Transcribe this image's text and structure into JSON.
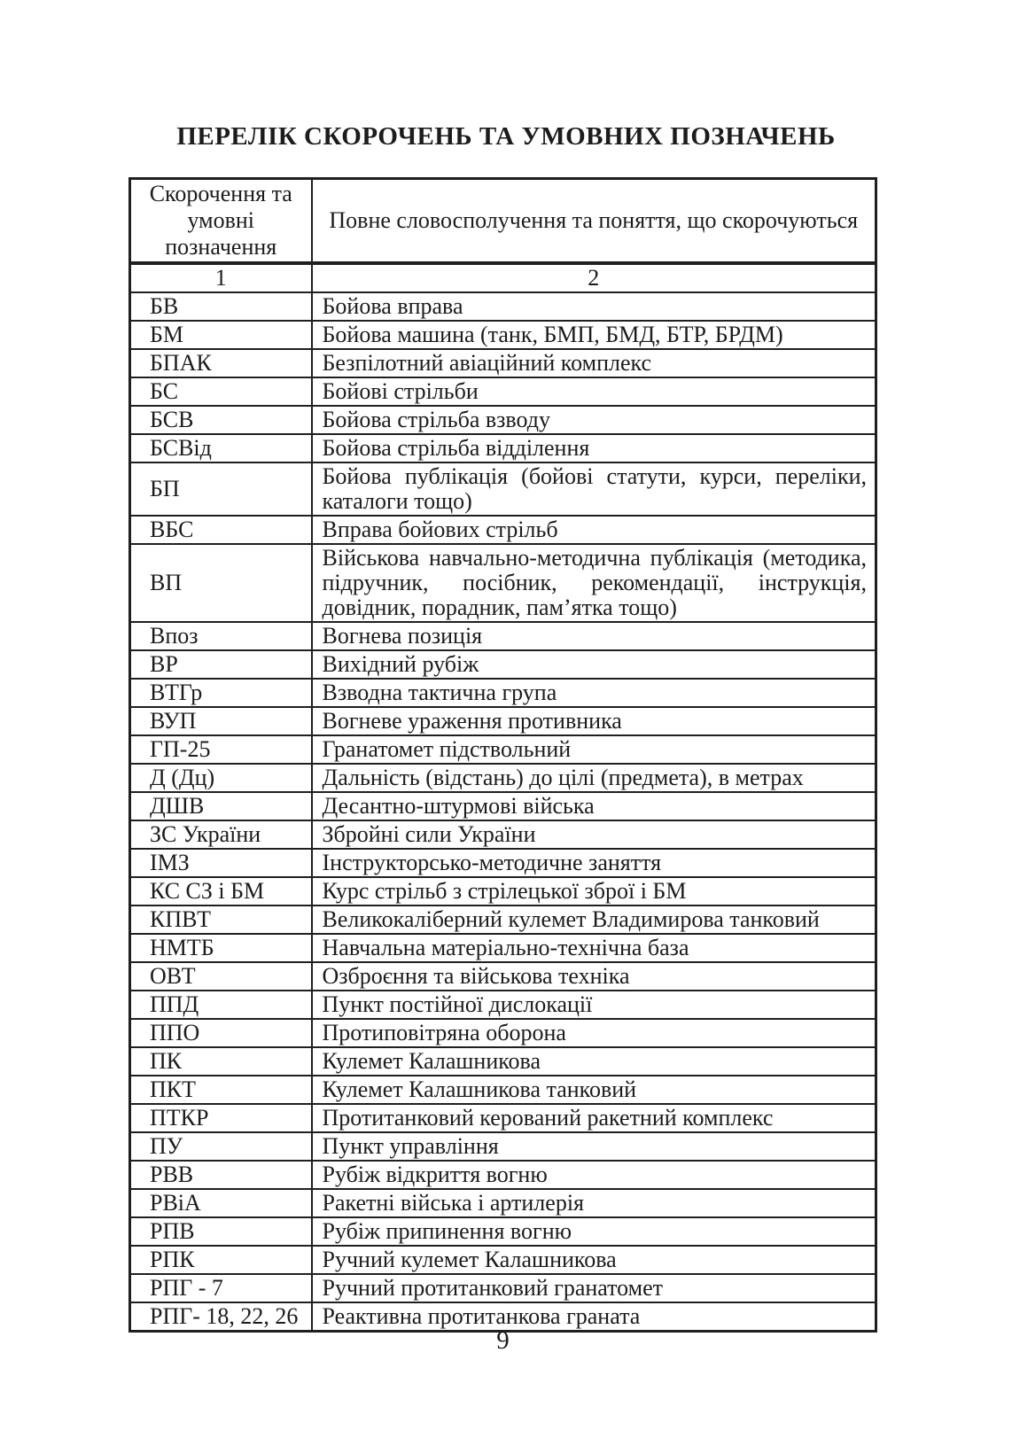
{
  "page": {
    "title": "ПЕРЕЛІК СКОРОЧЕНЬ ТА УМОВНИХ ПОЗНАЧЕНЬ",
    "page_number": "9"
  },
  "table": {
    "header": {
      "abbr_column": "Скорочення та умовні позначення",
      "full_column": "Повне словосполучення та поняття, що скорочуються"
    },
    "numbering": [
      "1",
      "2"
    ],
    "rows": [
      {
        "abbr": "БВ",
        "full": "Бойова вправа"
      },
      {
        "abbr": "БМ",
        "full": "Бойова машина (танк, БМП, БМД, БТР, БРДМ)"
      },
      {
        "abbr": "БПАК",
        "full": "Безпілотний авіаційний комплекс"
      },
      {
        "abbr": "БС",
        "full": "Бойові стрільби"
      },
      {
        "abbr": "БСВ",
        "full": "Бойова стрільба взводу"
      },
      {
        "abbr": "БСВід",
        "full": "Бойова стрільба відділення"
      },
      {
        "abbr": "БП",
        "full": "Бойова публікація (бойові статути, курси, переліки, каталоги тощо)"
      },
      {
        "abbr": "ВБС",
        "full": "Вправа бойових стрільб"
      },
      {
        "abbr": "ВП",
        "full": "Військова навчально-методична публікація (методика, підручник, посібник, рекомендації, інструкція, довідник, порадник, пам’ятка тощо)"
      },
      {
        "abbr": "Впоз",
        "full": "Вогнева позиція"
      },
      {
        "abbr": "ВР",
        "full": "Вихідний рубіж"
      },
      {
        "abbr": "ВТГр",
        "full": "Взводна тактична група"
      },
      {
        "abbr": "ВУП",
        "full": "Вогневе ураження противника"
      },
      {
        "abbr": "ГП-25",
        "full": "Гранатомет підствольний"
      },
      {
        "abbr": "Д (Дц)",
        "full": "Дальність (відстань) до цілі (предмета), в метрах"
      },
      {
        "abbr": "ДШВ",
        "full": "Десантно-штурмові війська"
      },
      {
        "abbr": "ЗС України",
        "full": "Збройні сили України"
      },
      {
        "abbr": "ІМЗ",
        "full": "Інструкторсько-методичне заняття"
      },
      {
        "abbr": "КС СЗ і БМ",
        "full": "Курс стрільб з стрілецької зброї і БМ"
      },
      {
        "abbr": "КПВТ",
        "full": "Великокаліберний кулемет Владимирова танковий"
      },
      {
        "abbr": "НМТБ",
        "full": "Навчальна матеріально-технічна база"
      },
      {
        "abbr": "ОВТ",
        "full": "Озброєння та військова техніка"
      },
      {
        "abbr": "ППД",
        "full": "Пункт постійної дислокації"
      },
      {
        "abbr": "ППО",
        "full": "Протиповітряна оборона"
      },
      {
        "abbr": "ПК",
        "full": "Кулемет Калашникова"
      },
      {
        "abbr": "ПКТ",
        "full": "Кулемет Калашникова танковий"
      },
      {
        "abbr": "ПТКР",
        "full": "Протитанковий керований ракетний комплекс"
      },
      {
        "abbr": "ПУ",
        "full": "Пункт управління"
      },
      {
        "abbr": "РВВ",
        "full": "Рубіж відкриття вогню"
      },
      {
        "abbr": "РВіА",
        "full": "Ракетні війська і артилерія"
      },
      {
        "abbr": "РПВ",
        "full": "Рубіж припинення вогню"
      },
      {
        "abbr": "РПК",
        "full": "Ручний кулемет Калашникова"
      },
      {
        "abbr": "РПГ - 7",
        "full": "Ручний протитанковий гранатомет"
      },
      {
        "abbr": "РПГ- 18, 22, 26",
        "full": "Реактивна протитанкова граната"
      }
    ]
  }
}
